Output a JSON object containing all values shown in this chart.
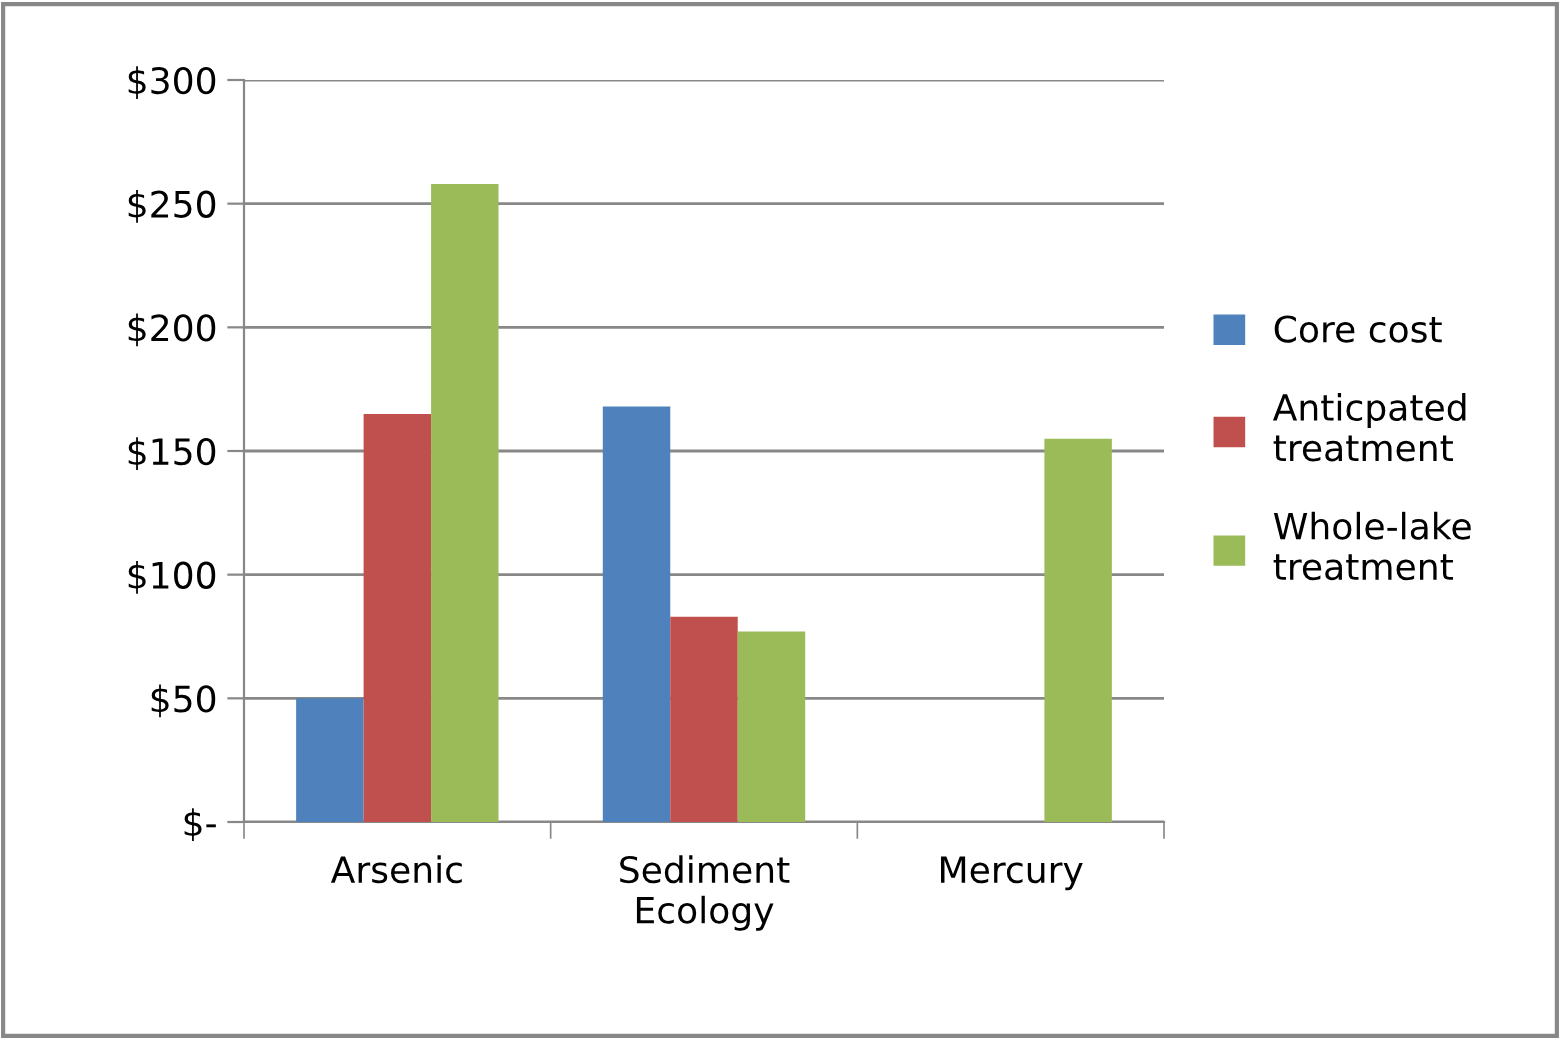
{
  "chart_data": {
    "type": "bar",
    "categories": [
      "Arsenic",
      "Sediment\nEcology",
      "Mercury"
    ],
    "series": [
      {
        "name": "Core cost",
        "color": "#4f81bd",
        "values": [
          50,
          168,
          null
        ]
      },
      {
        "name": "Anticpated\ntreatment",
        "color": "#c0504d",
        "values": [
          165,
          83,
          null
        ]
      },
      {
        "name": "Whole-lake\ntreatment",
        "color": "#9bbb59",
        "values": [
          258,
          77,
          155
        ]
      }
    ],
    "ylim": [
      0,
      300
    ],
    "yticks": [
      {
        "value": 0,
        "label": "$-"
      },
      {
        "value": 50,
        "label": "$50"
      },
      {
        "value": 100,
        "label": "$100"
      },
      {
        "value": 150,
        "label": "$150"
      },
      {
        "value": 200,
        "label": "$200"
      },
      {
        "value": 250,
        "label": "$250"
      },
      {
        "value": 300,
        "label": "$300"
      }
    ],
    "grid": "y",
    "legend": "right"
  }
}
